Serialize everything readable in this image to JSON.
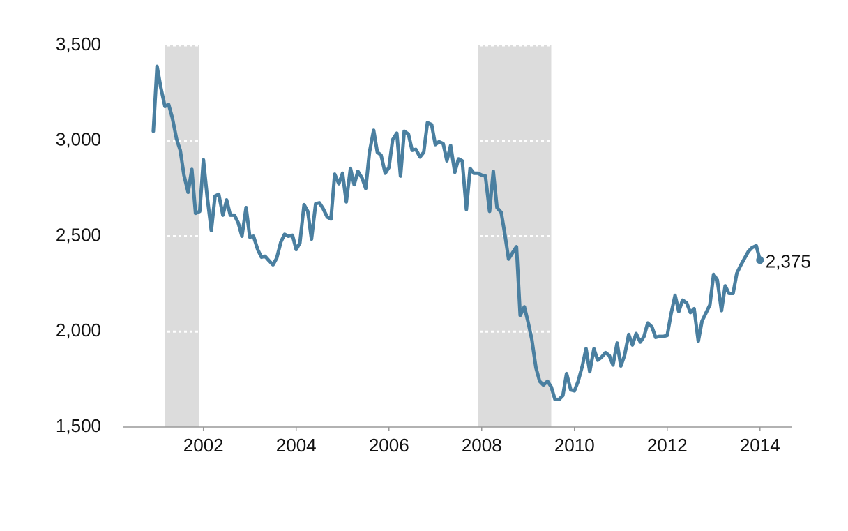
{
  "chart_data": {
    "type": "line",
    "x": [
      2000.92,
      2001,
      2001.08,
      2001.17,
      2001.25,
      2001.33,
      2001.42,
      2001.5,
      2001.58,
      2001.67,
      2001.75,
      2001.83,
      2001.92,
      2002,
      2002.08,
      2002.17,
      2002.25,
      2002.33,
      2002.42,
      2002.5,
      2002.58,
      2002.67,
      2002.75,
      2002.83,
      2002.92,
      2003,
      2003.08,
      2003.17,
      2003.25,
      2003.33,
      2003.42,
      2003.5,
      2003.58,
      2003.67,
      2003.75,
      2003.83,
      2003.92,
      2004,
      2004.08,
      2004.17,
      2004.25,
      2004.33,
      2004.42,
      2004.5,
      2004.58,
      2004.67,
      2004.75,
      2004.83,
      2004.92,
      2005,
      2005.08,
      2005.17,
      2005.25,
      2005.33,
      2005.42,
      2005.5,
      2005.58,
      2005.67,
      2005.75,
      2005.83,
      2005.92,
      2006,
      2006.08,
      2006.17,
      2006.25,
      2006.33,
      2006.42,
      2006.5,
      2006.58,
      2006.67,
      2006.75,
      2006.83,
      2006.92,
      2007,
      2007.08,
      2007.17,
      2007.25,
      2007.33,
      2007.42,
      2007.5,
      2007.58,
      2007.67,
      2007.75,
      2007.83,
      2007.92,
      2008,
      2008.08,
      2008.17,
      2008.25,
      2008.33,
      2008.42,
      2008.5,
      2008.58,
      2008.67,
      2008.75,
      2008.83,
      2008.92,
      2009,
      2009.08,
      2009.17,
      2009.25,
      2009.33,
      2009.42,
      2009.5,
      2009.58,
      2009.67,
      2009.75,
      2009.83,
      2009.92,
      2010,
      2010.08,
      2010.17,
      2010.25,
      2010.33,
      2010.42,
      2010.5,
      2010.58,
      2010.67,
      2010.75,
      2010.83,
      2010.92,
      2011,
      2011.08,
      2011.17,
      2011.25,
      2011.33,
      2011.42,
      2011.5,
      2011.58,
      2011.67,
      2011.75,
      2011.83,
      2011.92,
      2012,
      2012.08,
      2012.17,
      2012.25,
      2012.33,
      2012.42,
      2012.5,
      2012.58,
      2012.67,
      2012.75,
      2012.83,
      2012.92,
      2013,
      2013.08,
      2013.17,
      2013.25,
      2013.33,
      2013.42,
      2013.5,
      2013.58,
      2013.67,
      2013.75,
      2013.83,
      2013.92,
      2014
    ],
    "series": [
      {
        "color": "#4a7fa0",
        "values": [
          3050,
          3390,
          3280,
          3180,
          3190,
          3120,
          3010,
          2950,
          2820,
          2730,
          2850,
          2620,
          2630,
          2900,
          2710,
          2530,
          2710,
          2720,
          2610,
          2690,
          2610,
          2610,
          2570,
          2500,
          2650,
          2495,
          2500,
          2430,
          2390,
          2395,
          2370,
          2350,
          2385,
          2470,
          2510,
          2500,
          2505,
          2430,
          2465,
          2665,
          2630,
          2485,
          2670,
          2675,
          2645,
          2600,
          2590,
          2825,
          2775,
          2830,
          2680,
          2855,
          2770,
          2840,
          2805,
          2750,
          2940,
          3055,
          2940,
          2925,
          2830,
          2860,
          3005,
          3040,
          2815,
          3050,
          3035,
          2950,
          2955,
          2915,
          2940,
          3095,
          3085,
          2980,
          2995,
          2985,
          2895,
          2975,
          2835,
          2905,
          2895,
          2640,
          2855,
          2830,
          2830,
          2820,
          2815,
          2630,
          2840,
          2650,
          2625,
          2510,
          2380,
          2415,
          2445,
          2085,
          2130,
          2050,
          1960,
          1810,
          1740,
          1720,
          1740,
          1710,
          1645,
          1645,
          1665,
          1780,
          1695,
          1690,
          1740,
          1820,
          1910,
          1790,
          1910,
          1850,
          1865,
          1890,
          1875,
          1825,
          1940,
          1820,
          1875,
          1985,
          1930,
          1990,
          1945,
          1975,
          2045,
          2025,
          1970,
          1975,
          1975,
          1980,
          2090,
          2190,
          2105,
          2165,
          2150,
          2100,
          2120,
          1950,
          2055,
          2095,
          2140,
          2300,
          2270,
          2110,
          2240,
          2200,
          2200,
          2305,
          2345,
          2385,
          2420,
          2440,
          2450,
          2375
        ]
      }
    ],
    "annotations": [
      {
        "x": 2014,
        "value": 2375,
        "label": "2,375"
      }
    ],
    "shaded_periods": [
      [
        2001.17,
        2001.9
      ],
      [
        2007.92,
        2009.5
      ]
    ],
    "shade_color": "#dcdcdc",
    "xlim": [
      2000.26,
      2014.68
    ],
    "xticks": [
      2002,
      2004,
      2006,
      2008,
      2010,
      2012,
      2014
    ],
    "ylim": [
      1500,
      3500
    ],
    "yticks": [
      {
        "value": 1500,
        "label": "1,500"
      },
      {
        "value": 2000,
        "label": "2,000"
      },
      {
        "value": 2500,
        "label": "2,500"
      },
      {
        "value": 3000,
        "label": "3,000"
      },
      {
        "value": 3500,
        "label": "3,500"
      }
    ],
    "grid": true
  }
}
